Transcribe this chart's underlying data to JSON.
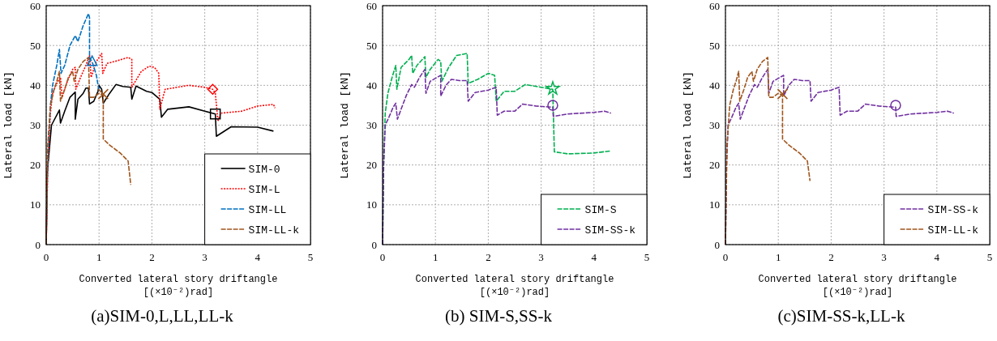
{
  "chart_data": [
    {
      "type": "line",
      "title": "(a)SIM-0,L,LL,LL-k",
      "xlabel": "Converted lateral story driftangle [(×10⁻²)rad]",
      "ylabel": "Lateral load [kN]",
      "xlim": [
        0,
        5
      ],
      "xticks": [
        0,
        1,
        2,
        3,
        4,
        5
      ],
      "ylim": [
        0,
        60
      ],
      "yticks": [
        0,
        10,
        20,
        30,
        40,
        50,
        60
      ],
      "grid": true,
      "legend": "bottom right",
      "series": [
        {
          "name": "SIM-0",
          "color": "#000000",
          "line_style": "solid",
          "x": [
            0,
            0.02,
            0.1,
            0.25,
            0.27,
            0.35,
            0.45,
            0.55,
            0.55,
            0.6,
            0.7,
            0.75,
            0.8,
            0.82,
            0.9,
            0.98,
            1.0,
            1.05,
            1.08,
            1.2,
            1.32,
            1.45,
            1.6,
            1.62,
            1.7,
            1.9,
            2.0,
            2.15,
            2.18,
            2.3,
            2.7,
            3.0,
            3.2,
            3.22,
            3.5,
            4.0,
            4.3
          ],
          "values": [
            0,
            18,
            30,
            33.8,
            30.5,
            33.5,
            37,
            38.3,
            31.5,
            36.5,
            38,
            39.3,
            39.3,
            35.3,
            36,
            38.5,
            40,
            39,
            35.5,
            38,
            40.2,
            39.7,
            39.5,
            36.5,
            39.8,
            38.5,
            38.2,
            36.5,
            32,
            34,
            34.6,
            33.5,
            32.8,
            27.2,
            29.6,
            29.5,
            28.5
          ]
        },
        {
          "name": "SIM-L",
          "color": "#ff0000",
          "line_style": "dotted",
          "x": [
            0,
            0.03,
            0.08,
            0.12,
            0.2,
            0.27,
            0.3,
            0.4,
            0.5,
            0.55,
            0.56,
            0.65,
            0.75,
            0.82,
            0.85,
            0.95,
            1.05,
            1.07,
            1.15,
            1.3,
            1.55,
            1.62,
            1.62,
            1.8,
            1.95,
            2.05,
            2.13,
            2.15,
            2.25,
            2.7,
            3.0,
            3.15,
            3.2,
            3.25,
            3.3,
            3.7,
            4.0,
            4.3,
            4.33
          ],
          "values": [
            0,
            20,
            33,
            38,
            40.5,
            42,
            37,
            41,
            44,
            44.5,
            39,
            42,
            45,
            47.5,
            42,
            46,
            48,
            43,
            45.5,
            46,
            47,
            46.5,
            39.5,
            43.5,
            44.8,
            44.5,
            43,
            34,
            39,
            40,
            39.5,
            39,
            38,
            31,
            33,
            33.5,
            34.8,
            35.2,
            34.3
          ]
        },
        {
          "name": "SIM-LL",
          "color": "#0070c0",
          "line_style": "dashed",
          "x": [
            0,
            0.03,
            0.08,
            0.12,
            0.2,
            0.25,
            0.28,
            0.35,
            0.45,
            0.55,
            0.6,
            0.7,
            0.8,
            0.82,
            0.82,
            0.88,
            0.95,
            1.0
          ],
          "values": [
            0,
            22,
            35,
            40,
            45,
            49,
            43,
            45,
            50,
            52.5,
            51,
            55,
            58,
            57,
            47,
            45.5,
            42.5,
            38.5
          ]
        },
        {
          "name": "SIM-LL-k",
          "color": "#a0561e",
          "line_style": "dashed",
          "x": [
            0,
            0.03,
            0.08,
            0.15,
            0.2,
            0.25,
            0.27,
            0.35,
            0.42,
            0.5,
            0.53,
            0.6,
            0.7,
            0.8,
            0.82,
            0.9,
            1.0,
            1.08,
            1.08,
            1.2,
            1.4,
            1.55,
            1.6
          ],
          "values": [
            0,
            25,
            35,
            39,
            41,
            43.5,
            36,
            39,
            42,
            43.5,
            41,
            44,
            46,
            47,
            37,
            37,
            38,
            37.5,
            26.5,
            25,
            23,
            21,
            15
          ]
        },
        {
          "type": "scatter",
          "marker": "triangle",
          "color": "#0070c0",
          "x": [
            0.87
          ],
          "values": [
            46
          ]
        },
        {
          "type": "scatter",
          "marker": "cross",
          "color": "#a0561e",
          "x": [
            1.08
          ],
          "values": [
            37.8
          ]
        },
        {
          "type": "scatter",
          "marker": "diamond",
          "color": "#ff0000",
          "x": [
            3.15
          ],
          "values": [
            39
          ]
        },
        {
          "type": "scatter",
          "marker": "square",
          "color": "#000000",
          "x": [
            3.2
          ],
          "values": [
            32.8
          ]
        }
      ]
    },
    {
      "type": "line",
      "title": "(b) SIM-S,SS-k",
      "xlabel": "Converted lateral story driftangle [(×10⁻²)rad]",
      "ylabel": "Lateral load [kN]",
      "xlim": [
        0,
        5
      ],
      "xticks": [
        0,
        1,
        2,
        3,
        4,
        5
      ],
      "ylim": [
        0,
        60
      ],
      "yticks": [
        0,
        10,
        20,
        30,
        40,
        50,
        60
      ],
      "grid": true,
      "legend": "bottom right",
      "series": [
        {
          "name": "SIM-S",
          "color": "#00b050",
          "line_style": "dashed",
          "x": [
            0,
            0.02,
            0.05,
            0.1,
            0.18,
            0.25,
            0.27,
            0.35,
            0.5,
            0.55,
            0.57,
            0.65,
            0.8,
            0.82,
            0.9,
            1.05,
            1.1,
            1.12,
            1.25,
            1.4,
            1.6,
            1.62,
            1.8,
            2.0,
            2.12,
            2.15,
            2.3,
            2.5,
            2.7,
            3.0,
            3.22,
            3.25,
            3.5,
            4.0,
            4.3
          ],
          "values": [
            0,
            20,
            33,
            38,
            42,
            45,
            39,
            44.5,
            46.5,
            47.5,
            43,
            45,
            47.2,
            42,
            44,
            46.5,
            46,
            41,
            44.5,
            47.5,
            48,
            40.5,
            41.5,
            43,
            42.5,
            36,
            38.5,
            38.5,
            40.2,
            39.5,
            39,
            23.3,
            22.8,
            23,
            23.5
          ]
        },
        {
          "name": "SIM-SS-k",
          "color": "#7030a0",
          "line_style": "dashed",
          "x": [
            0,
            0.02,
            0.05,
            0.12,
            0.2,
            0.25,
            0.28,
            0.35,
            0.45,
            0.55,
            0.6,
            0.7,
            0.8,
            0.82,
            0.9,
            1.1,
            1.1,
            1.2,
            1.3,
            1.45,
            1.6,
            1.62,
            1.75,
            2.0,
            2.15,
            2.17,
            2.3,
            2.5,
            2.65,
            2.9,
            3.22,
            3.23,
            3.5,
            4.0,
            4.2,
            4.32
          ],
          "values": [
            0,
            20,
            30,
            32,
            34.5,
            35.5,
            31.5,
            34,
            37.5,
            40.2,
            39.5,
            42,
            44,
            38,
            41,
            42.5,
            37.3,
            40,
            41.5,
            41.2,
            41.2,
            36,
            38.2,
            38.8,
            39.5,
            32.5,
            33.5,
            33.5,
            35.3,
            34.8,
            34.5,
            32.2,
            32.8,
            33.2,
            33.5,
            33
          ]
        },
        {
          "type": "scatter",
          "marker": "star",
          "color": "#00b050",
          "x": [
            3.22
          ],
          "values": [
            39.2
          ]
        },
        {
          "type": "scatter",
          "marker": "circle",
          "color": "#7030a0",
          "x": [
            3.22
          ],
          "values": [
            35
          ]
        }
      ]
    },
    {
      "type": "line",
      "title": "(c)SIM-SS-k,LL-k",
      "xlabel": "Converted lateral story driftangle [(×10⁻²)rad]",
      "ylabel": "Lateral load [kN]",
      "xlim": [
        0,
        5
      ],
      "xticks": [
        0,
        1,
        2,
        3,
        4,
        5
      ],
      "ylim": [
        0,
        60
      ],
      "yticks": [
        0,
        10,
        20,
        30,
        40,
        50,
        60
      ],
      "grid": true,
      "legend": "bottom right",
      "series": [
        {
          "name": "SIM-SS-k",
          "color": "#7030a0",
          "line_style": "dashed",
          "x": [
            0,
            0.02,
            0.05,
            0.12,
            0.2,
            0.25,
            0.28,
            0.35,
            0.45,
            0.55,
            0.6,
            0.7,
            0.8,
            0.82,
            0.9,
            1.1,
            1.1,
            1.2,
            1.3,
            1.45,
            1.6,
            1.62,
            1.75,
            2.0,
            2.15,
            2.17,
            2.3,
            2.5,
            2.65,
            2.9,
            3.22,
            3.23,
            3.5,
            4.0,
            4.2,
            4.32
          ],
          "values": [
            0,
            20,
            30,
            32,
            34.5,
            35.5,
            31.5,
            34,
            37.5,
            40.2,
            39.5,
            42,
            44,
            38,
            41,
            42.5,
            37.3,
            40,
            41.5,
            41.2,
            41.2,
            36,
            38.2,
            38.8,
            39.5,
            32.5,
            33.5,
            33.5,
            35.3,
            34.8,
            34.5,
            32.2,
            32.8,
            33.2,
            33.5,
            33
          ]
        },
        {
          "name": "SIM-LL-k",
          "color": "#a0561e",
          "line_style": "dashed",
          "x": [
            0,
            0.03,
            0.08,
            0.15,
            0.2,
            0.25,
            0.27,
            0.35,
            0.42,
            0.5,
            0.53,
            0.6,
            0.7,
            0.8,
            0.82,
            0.9,
            1.0,
            1.08,
            1.08,
            1.2,
            1.4,
            1.55,
            1.6
          ],
          "values": [
            0,
            25,
            35,
            39,
            41,
            43.5,
            36,
            39,
            42,
            43.5,
            41,
            44,
            46,
            47,
            37,
            37,
            38,
            37.5,
            26.5,
            25,
            23,
            21,
            16
          ]
        },
        {
          "type": "scatter",
          "marker": "cross",
          "color": "#a0561e",
          "x": [
            1.08
          ],
          "values": [
            37.8
          ]
        },
        {
          "type": "scatter",
          "marker": "circle",
          "color": "#7030a0",
          "x": [
            3.22
          ],
          "values": [
            35
          ]
        }
      ]
    }
  ]
}
